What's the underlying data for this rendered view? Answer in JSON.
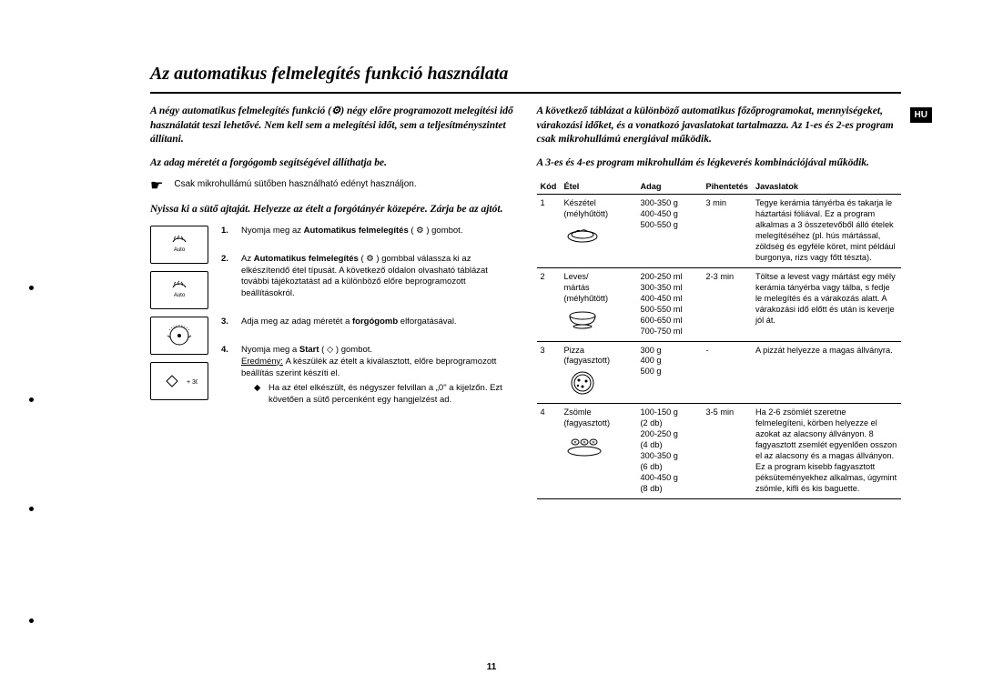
{
  "lang_badge": "HU",
  "title": "Az automatikus felmelegítés funkció használata",
  "left": {
    "intro": "A négy automatikus felmelegítés funkció (⚙) négy előre programozott melegítési idő használatát teszi lehetővé. Nem kell sem a melegítési időt, sem a teljesítményszintet állítani.",
    "sub_intro": "Az adag méretét a forgógomb segítségével állíthatja be.",
    "hand_note": "Csak mikrohullámú sütőben használható edényt használjon.",
    "instr": "Nyissa ki a sütő ajtaját. Helyezze az ételt a forgótányér közepére. Zárja be az ajtót.",
    "steps": [
      {
        "n": "1.",
        "txt": "Nyomja meg az <b>Automatikus felmelegítés</b> ( ⚙ ) gombot."
      },
      {
        "n": "2.",
        "txt": "Az <b>Automatikus felmelegítés</b> ( ⚙ ) gombbal válassza ki az elkészítendő étel típusát. A következő oldalon olvasható táblázat további tájékoztatást ad a különböző előre beprogramozott beállításokról."
      },
      {
        "n": "3.",
        "txt": "Adja meg az adag méretét a <b>forgógomb</b> elforgatásával."
      },
      {
        "n": "4.",
        "txt": "Nyomja meg a <b>Start</b> ( ◇ ) gombot.",
        "result_label": "Eredmény:",
        "result_txt": "A készülék az ételt a kiválasztott, előre beprogramozott beállítás szerint készíti el.",
        "bullet": "Ha az étel elkészült, és négyszer felvillan a „0\" a kijelzőn. Ezt követően a sütő percenként egy hangjelzést ad."
      }
    ]
  },
  "right": {
    "intro": "A következő táblázat a különböző automatikus főzőprogramokat, mennyiségeket, várakozási időket, és a vonatkozó javaslatokat tartalmazza. Az 1-es és 2-es program csak mikrohullámú energiával működik.",
    "sub_intro": "A 3-es és 4-es program mikrohullám és légkeverés kombinációjával működik.",
    "columns": [
      "Kód",
      "Étel",
      "Adag",
      "Pihentetés",
      "Javaslatok"
    ],
    "rows": [
      {
        "kod": "1",
        "etel": "Készétel\n(mélyhűtött)",
        "adag": "300-350 g\n400-450 g\n500-550 g",
        "pih": "3 min",
        "sug": "Tegye kerámia tányérba és takarja le háztartási fóliával. Ez a program alkalmas a 3 összetevőből álló ételek melegítéséhez (pl. hús mártással, zöldség és egyféle köret, mint például burgonya, rizs vagy főtt tészta).",
        "icon": "plate"
      },
      {
        "kod": "2",
        "etel": "Leves/\nmártás\n(mélyhűtött)",
        "adag": "200-250 ml\n300-350 ml\n400-450 ml\n500-550 ml\n600-650 ml\n700-750 ml",
        "pih": "2-3 min",
        "sug": "Töltse a levest vagy mártást egy mély kerámia tányérba vagy tálba, s fedje le melegítés és a várakozás alatt. A várakozási idő előtt és után is keverje jól át.",
        "icon": "bowl"
      },
      {
        "kod": "3",
        "etel": "Pizza\n(fagyasztott)",
        "adag": "300 g\n400 g\n500 g",
        "pih": "-",
        "sug": "A pizzát helyezze a magas állványra.",
        "icon": "pizza"
      },
      {
        "kod": "4",
        "etel": "Zsömle\n(fagyasztott)",
        "adag": "100-150 g\n(2 db)\n200-250 g\n(4 db)\n300-350 g\n(6 db)\n400-450 g\n(8 db)",
        "pih": "3-5 min",
        "sug": "Ha 2-6 zsömlét szeretne felmelegíteni, körben helyezze el azokat az alacsony állványon. 8 fagyasztott zsemlét egyenlően osszon el az alacsony és a magas állványon. Ez a program kisebb fagyasztott péksüteményekhez alkalmas, úgymint zsömle, kifli és kis baguette.",
        "icon": "bread"
      }
    ]
  },
  "page_num": "11",
  "colors": {
    "black": "#000000",
    "white": "#ffffff"
  }
}
